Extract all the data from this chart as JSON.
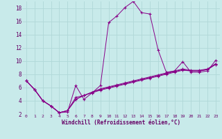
{
  "xlabel": "Windchill (Refroidissement éolien,°C)",
  "background_color": "#c8eaea",
  "grid_color": "#b0d8d8",
  "line_color": "#880088",
  "xlim": [
    -0.5,
    23.5
  ],
  "ylim": [
    2,
    19
  ],
  "xticks": [
    0,
    1,
    2,
    3,
    4,
    5,
    6,
    7,
    8,
    9,
    10,
    11,
    12,
    13,
    14,
    15,
    16,
    17,
    18,
    19,
    20,
    21,
    22,
    23
  ],
  "yticks": [
    2,
    4,
    6,
    8,
    10,
    12,
    14,
    16,
    18
  ],
  "x_data": [
    0,
    1,
    2,
    3,
    4,
    5,
    6,
    7,
    8,
    9,
    10,
    11,
    12,
    13,
    14,
    15,
    16,
    17,
    18,
    19,
    20,
    21,
    22,
    23
  ],
  "curves": [
    [
      7.0,
      5.7,
      4.0,
      3.2,
      2.2,
      2.3,
      6.3,
      4.2,
      5.2,
      6.3,
      15.8,
      16.8,
      18.1,
      19.0,
      17.3,
      17.1,
      11.7,
      8.3,
      8.5,
      9.9,
      8.3,
      8.3,
      8.5,
      10.1
    ],
    [
      7.0,
      5.7,
      4.0,
      3.2,
      2.2,
      2.5,
      4.5,
      4.8,
      5.2,
      5.6,
      5.9,
      6.2,
      6.5,
      6.8,
      7.1,
      7.4,
      7.7,
      8.0,
      8.3,
      8.6,
      8.5,
      8.5,
      8.7,
      9.5
    ],
    [
      7.0,
      5.7,
      4.0,
      3.2,
      2.2,
      2.5,
      4.2,
      4.8,
      5.3,
      5.7,
      6.0,
      6.3,
      6.6,
      6.9,
      7.2,
      7.5,
      7.8,
      8.1,
      8.4,
      8.7,
      8.5,
      8.5,
      8.7,
      9.5
    ],
    [
      7.0,
      5.7,
      4.0,
      3.2,
      2.2,
      2.5,
      4.2,
      4.8,
      5.3,
      5.8,
      6.1,
      6.4,
      6.7,
      7.0,
      7.3,
      7.6,
      7.9,
      8.2,
      8.5,
      8.8,
      8.6,
      8.6,
      8.8,
      9.6
    ]
  ]
}
